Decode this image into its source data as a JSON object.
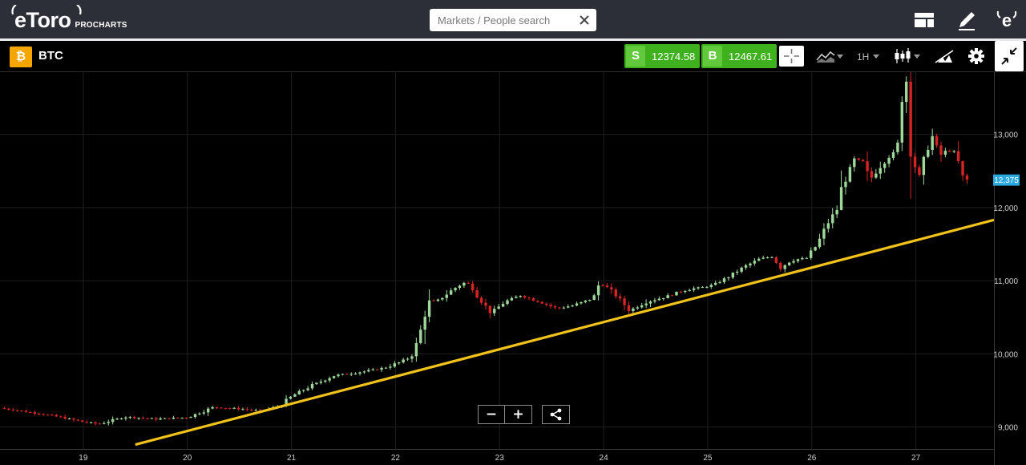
{
  "header": {
    "logo_text": "eToro",
    "logo_sub": "PROCHARTS",
    "search_placeholder": "Markets / People search",
    "icons": [
      "layout-icon",
      "pencil-icon",
      "etoro-profile-icon"
    ]
  },
  "instrument": {
    "symbol": "BTC",
    "icon": "bitcoin-icon",
    "sell_label": "S",
    "sell_price": "12374.58",
    "buy_label": "B",
    "buy_price": "12467.61",
    "timeframe": "1H",
    "controls": [
      "crosshair-icon",
      "chart-type-icon",
      "candlestick-icon",
      "drawing-tools-icon",
      "gear-icon",
      "collapse-icon"
    ]
  },
  "colors": {
    "up": "#9fd89a",
    "down": "#d62424",
    "trendline": "#f1c21b",
    "price_tag": "#2aa8e0",
    "buy_sell": "#3fb11f"
  },
  "chart_data": {
    "type": "candlestick",
    "title": "",
    "xlabel": "",
    "ylabel": "",
    "x_ticks": [
      "19",
      "20",
      "21",
      "22",
      "23",
      "24",
      "25",
      "26",
      "27"
    ],
    "y_ticks": [
      9000,
      10000,
      11000,
      12000,
      13000
    ],
    "y_tick_labels": [
      "9,000",
      "10,000",
      "11,000",
      "12,000",
      "13,000"
    ],
    "ylim": [
      8700,
      13850
    ],
    "xlim": [
      18.2,
      27.75
    ],
    "current_price_label": "12,375",
    "current_price": 12375,
    "interval": "1H",
    "grid": true,
    "trendline": {
      "start": [
        19.5,
        8760
      ],
      "end": [
        27.75,
        11830
      ]
    },
    "close_path": [
      [
        18.2,
        9260
      ],
      [
        18.5,
        9200
      ],
      [
        18.8,
        9130
      ],
      [
        19.0,
        9070
      ],
      [
        19.15,
        9040
      ],
      [
        19.4,
        9140
      ],
      [
        19.7,
        9110
      ],
      [
        20.0,
        9130
      ],
      [
        20.25,
        9270
      ],
      [
        20.5,
        9250
      ],
      [
        20.7,
        9220
      ],
      [
        20.9,
        9290
      ],
      [
        21.0,
        9420
      ],
      [
        21.2,
        9570
      ],
      [
        21.4,
        9700
      ],
      [
        21.7,
        9760
      ],
      [
        21.9,
        9810
      ],
      [
        22.05,
        9890
      ],
      [
        22.15,
        9960
      ],
      [
        22.22,
        10180
      ],
      [
        22.3,
        10680
      ],
      [
        22.42,
        10740
      ],
      [
        22.55,
        10880
      ],
      [
        22.65,
        10970
      ],
      [
        22.72,
        10950
      ],
      [
        22.8,
        10760
      ],
      [
        22.92,
        10560
      ],
      [
        23.05,
        10710
      ],
      [
        23.2,
        10800
      ],
      [
        23.4,
        10700
      ],
      [
        23.55,
        10620
      ],
      [
        23.7,
        10660
      ],
      [
        23.9,
        10760
      ],
      [
        23.96,
        10970
      ],
      [
        24.02,
        10920
      ],
      [
        24.12,
        10800
      ],
      [
        24.25,
        10590
      ],
      [
        24.4,
        10710
      ],
      [
        24.6,
        10780
      ],
      [
        24.8,
        10880
      ],
      [
        24.95,
        10910
      ],
      [
        25.05,
        10940
      ],
      [
        25.2,
        11050
      ],
      [
        25.35,
        11190
      ],
      [
        25.5,
        11300
      ],
      [
        25.62,
        11330
      ],
      [
        25.7,
        11180
      ],
      [
        25.8,
        11280
      ],
      [
        25.95,
        11310
      ],
      [
        26.05,
        11490
      ],
      [
        26.15,
        11780
      ],
      [
        26.25,
        11990
      ],
      [
        26.3,
        12360
      ],
      [
        26.35,
        12420
      ],
      [
        26.4,
        12650
      ],
      [
        26.5,
        12620
      ],
      [
        26.55,
        12360
      ],
      [
        26.65,
        12560
      ],
      [
        26.75,
        12730
      ],
      [
        26.82,
        12740
      ],
      [
        26.85,
        13480
      ],
      [
        26.88,
        13800
      ],
      [
        26.92,
        13720
      ],
      [
        26.96,
        12720
      ],
      [
        27.03,
        12380
      ],
      [
        27.1,
        12760
      ],
      [
        27.15,
        13000
      ],
      [
        27.22,
        12700
      ],
      [
        27.3,
        12780
      ],
      [
        27.38,
        12760
      ],
      [
        27.45,
        12390
      ],
      [
        27.5,
        12375
      ]
    ]
  }
}
